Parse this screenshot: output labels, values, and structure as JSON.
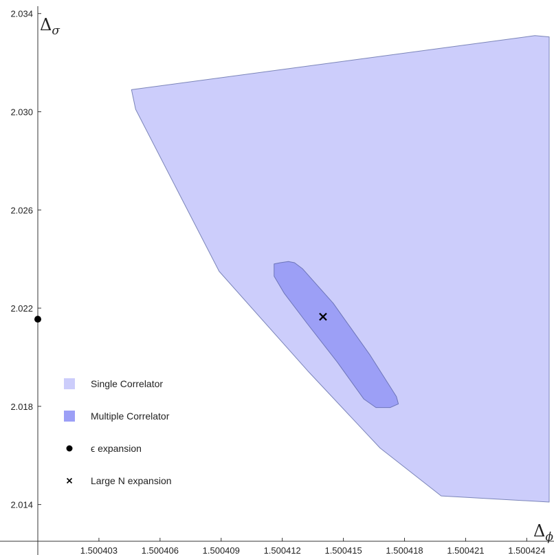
{
  "chart_data": {
    "type": "region-plot",
    "x_axis": {
      "label": "Δϕ",
      "label_base": "Δ",
      "label_sub": "ϕ",
      "ticks": [
        1.500403,
        1.500406,
        1.500409,
        1.500412,
        1.500415,
        1.500418,
        1.500421,
        1.500424
      ],
      "tick_labels": [
        "1.500403",
        "1.500406",
        "1.500409",
        "1.500412",
        "1.500415",
        "1.500418",
        "1.500421",
        "1.500424"
      ],
      "range": [
        1.5004,
        1.500425
      ]
    },
    "y_axis": {
      "label": "Δσ",
      "label_base": "Δ",
      "label_sub": "σ",
      "ticks": [
        2.014,
        2.018,
        2.022,
        2.026,
        2.03,
        2.034
      ],
      "tick_labels": [
        "2.014",
        "2.018",
        "2.022",
        "2.026",
        "2.030",
        "2.034"
      ],
      "range": [
        2.012,
        2.0343
      ]
    },
    "regions": [
      {
        "name": "Single Correlator",
        "fill": "#cccdfb",
        "stroke": "#7a84b8",
        "points": [
          [
            1.5004046,
            2.0309
          ],
          [
            1.5004244,
            2.0331
          ],
          [
            1.5004251,
            2.03305
          ],
          [
            1.5004251,
            2.0141
          ],
          [
            1.5004198,
            2.01435
          ],
          [
            1.5004168,
            2.0163
          ],
          [
            1.5004133,
            2.0194
          ],
          [
            1.5004089,
            2.0235
          ],
          [
            1.5004048,
            2.0301
          ]
        ]
      },
      {
        "name": "Multiple Correlator",
        "fill": "#9c9ff6",
        "stroke": "#6c74b8",
        "points": [
          [
            1.5004116,
            2.0238
          ],
          [
            1.5004119,
            2.02385
          ],
          [
            1.5004123,
            2.0239
          ],
          [
            1.5004126,
            2.02385
          ],
          [
            1.500413,
            2.0236
          ],
          [
            1.5004145,
            2.0222
          ],
          [
            1.5004163,
            2.0201
          ],
          [
            1.5004176,
            2.0184
          ],
          [
            1.5004177,
            2.0181
          ],
          [
            1.5004173,
            2.01795
          ],
          [
            1.5004166,
            2.01795
          ],
          [
            1.500416,
            2.0183
          ],
          [
            1.5004147,
            2.0198
          ],
          [
            1.5004132,
            2.0214
          ],
          [
            1.5004121,
            2.0226
          ],
          [
            1.5004116,
            2.0233
          ]
        ]
      }
    ],
    "points": [
      {
        "name": "ϵ expansion",
        "marker": "dot",
        "x": 1.5004,
        "y": 2.02155
      },
      {
        "name": "Large N expansion",
        "marker": "cross",
        "x": 1.500414,
        "y": 2.02165
      }
    ],
    "legend": {
      "position": "bottom-left",
      "entries": [
        {
          "label": "Single Correlator",
          "symbol": "swatch",
          "color": "#cccdfb"
        },
        {
          "label": "Multiple Correlator",
          "symbol": "swatch",
          "color": "#9c9ff6"
        },
        {
          "label": "ϵ expansion",
          "symbol": "dot",
          "color": "#000000"
        },
        {
          "label": "Large N expansion",
          "symbol": "cross",
          "color": "#000000"
        }
      ]
    },
    "grid": false
  }
}
